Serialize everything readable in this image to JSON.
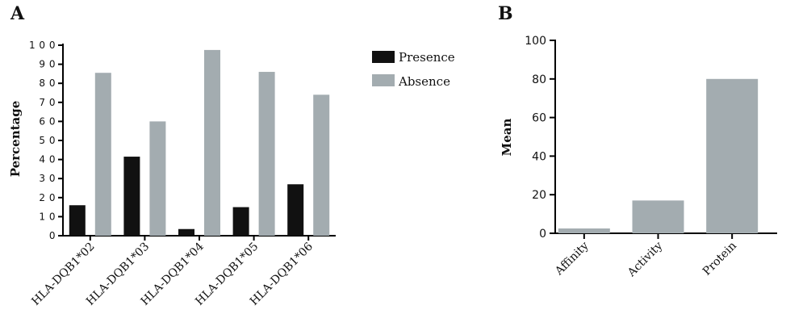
{
  "colors": {
    "presence": "#111111",
    "absence": "#a3acb0",
    "bar_b": "#a3acb0",
    "axis": "#000000"
  },
  "chart_data": [
    {
      "panel": "A",
      "type": "bar",
      "ylabel": "Percentage",
      "xlabel": "",
      "ylim": [
        0,
        100
      ],
      "yticks": [
        0,
        10,
        20,
        30,
        40,
        50,
        60,
        70,
        80,
        90,
        100
      ],
      "yticklabels": [
        "0",
        "1 0",
        "2 0",
        "3 0",
        "4 0",
        "5 0",
        "6 0",
        "7 0",
        "8 0",
        "9 0",
        "1 0 0"
      ],
      "categories": [
        "HLA-DQB1*02",
        "HLA-DQB1*03",
        "HLA-DQB1*04",
        "HLA-DQB1*05",
        "HLA-DQB1*06"
      ],
      "series": [
        {
          "name": "Presence",
          "values": [
            16,
            41.5,
            3.5,
            15,
            27
          ]
        },
        {
          "name": "Absence",
          "values": [
            85.5,
            60,
            97.5,
            86,
            74
          ]
        }
      ],
      "legend_position": "top-right",
      "grid": false
    },
    {
      "panel": "B",
      "type": "bar",
      "ylabel": "Mean",
      "xlabel": "",
      "ylim": [
        0,
        100
      ],
      "yticks": [
        0,
        20,
        40,
        60,
        80,
        100
      ],
      "yticklabels": [
        "0",
        "20",
        "40",
        "60",
        "80",
        "100"
      ],
      "categories": [
        "Affinity",
        "Activity",
        "Protein"
      ],
      "values": [
        2.5,
        17,
        80
      ],
      "grid": false
    }
  ]
}
